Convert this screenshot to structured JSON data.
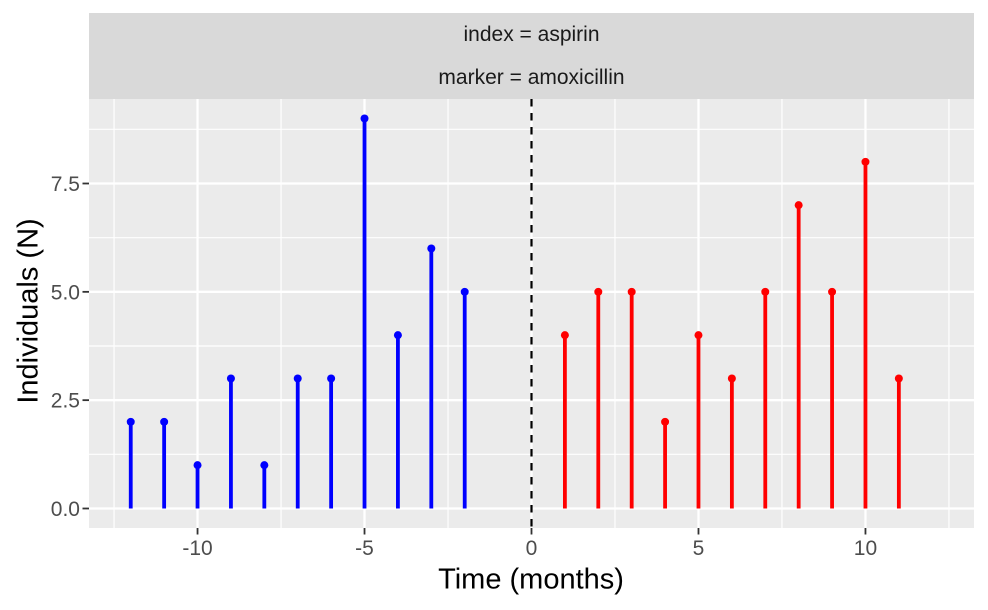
{
  "facet_strip": {
    "line1": "index = aspirin",
    "line2": "marker = amoxicillin"
  },
  "axes": {
    "x_title": "Time (months)",
    "y_title": "Individuals (N)",
    "x_tick_labels": [
      "-10",
      "-5",
      "0",
      "5",
      "10"
    ],
    "x_tick_values": [
      -10,
      -5,
      0,
      5,
      10
    ],
    "y_tick_labels": [
      "0.0",
      "2.5",
      "5.0",
      "7.5"
    ],
    "y_tick_values": [
      0,
      2.5,
      5,
      7.5
    ]
  },
  "chart_data": {
    "type": "bar",
    "variant": "lollipop-stem",
    "title": "index = aspirin; marker = amoxicillin",
    "xlabel": "Time (months)",
    "ylabel": "Individuals (N)",
    "xlim": [
      -13.25,
      13.25
    ],
    "ylim": [
      -0.45,
      9.45
    ],
    "grid": true,
    "legend": "none",
    "x_major_gridlines": [
      -10,
      -5,
      0,
      5,
      10
    ],
    "x_minor_gridlines": [
      -12.5,
      -7.5,
      -2.5,
      2.5,
      7.5,
      12.5
    ],
    "y_major_gridlines": [
      0,
      2.5,
      5,
      7.5
    ],
    "y_minor_gridlines": [
      1.25,
      3.75,
      6.25,
      8.75
    ],
    "reference_line": {
      "x": 0,
      "style": "dashed",
      "color": "#000000"
    },
    "series": [
      {
        "name": "blue",
        "color": "#0000FF",
        "x": [
          -12,
          -11,
          -10,
          -9,
          -8,
          -7,
          -6,
          -5,
          -4,
          -3,
          -2
        ],
        "y": [
          2,
          2,
          1,
          3,
          1,
          3,
          3,
          9,
          4,
          6,
          5
        ]
      },
      {
        "name": "red",
        "color": "#FF0000",
        "x": [
          1,
          2,
          3,
          4,
          5,
          6,
          7,
          8,
          9,
          10,
          11
        ],
        "y": [
          4,
          5,
          5,
          2,
          4,
          3,
          5,
          7,
          5,
          8,
          3
        ]
      }
    ]
  },
  "colors": {
    "figure_bg": "#FFFFFF",
    "panel_bg": "#EBEBEB",
    "strip_bg": "#D9D9D9",
    "strip_text": "#1A1A1A",
    "gridline": "#FFFFFF",
    "axis_text": "#4D4D4D",
    "tick_mark": "#333333",
    "axis_title": "#000000"
  }
}
